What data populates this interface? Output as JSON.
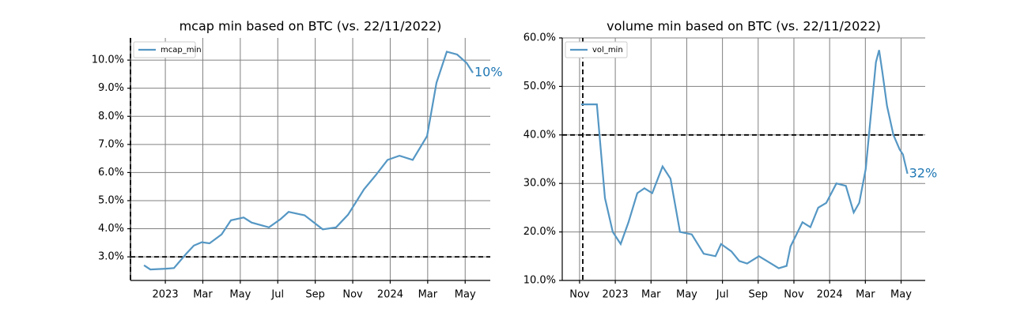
{
  "chart_data": [
    {
      "type": "line",
      "title": "mcap min based on BTC (vs. 22/11/2022)",
      "x": [
        0.86,
        1.2,
        2.04,
        2.46,
        3.1,
        3.52,
        3.94,
        4.36,
        5.0,
        5.5,
        6.18,
        6.6,
        7.53,
        8.16,
        8.58,
        9.43,
        10.4,
        11.11,
        11.75,
        12.6,
        13.22,
        13.86,
        14.49,
        15.2,
        15.97,
        16.47,
        17.02,
        17.57,
        18.08,
        18.41
      ],
      "series": [
        {
          "name": "mcap_min",
          "color": "#5597c4",
          "values": [
            2.7,
            2.55,
            2.58,
            2.6,
            3.1,
            3.4,
            3.52,
            3.48,
            3.8,
            4.3,
            4.4,
            4.22,
            4.05,
            4.35,
            4.6,
            4.48,
            3.98,
            4.05,
            4.5,
            5.4,
            5.9,
            6.45,
            6.6,
            6.45,
            7.3,
            9.2,
            10.3,
            10.2,
            9.9,
            9.55
          ]
        }
      ],
      "xlim": [
        0.14,
        19.34
      ],
      "xticks": [
        {
          "value": 2,
          "label": "2023"
        },
        {
          "value": 4,
          "label": "Mar"
        },
        {
          "value": 6,
          "label": "May"
        },
        {
          "value": 8,
          "label": "Jul"
        },
        {
          "value": 10,
          "label": "Sep"
        },
        {
          "value": 12,
          "label": "Nov"
        },
        {
          "value": 14,
          "label": "2024"
        },
        {
          "value": 16,
          "label": "Mar"
        },
        {
          "value": 18,
          "label": "May"
        }
      ],
      "ylim": [
        2.16,
        10.79
      ],
      "yticks": [
        {
          "value": 3,
          "label": "3.0%"
        },
        {
          "value": 4,
          "label": "4.0%"
        },
        {
          "value": 5,
          "label": "5.0%"
        },
        {
          "value": 6,
          "label": "6.0%"
        },
        {
          "value": 7,
          "label": "7.0%"
        },
        {
          "value": 8,
          "label": "8.0%"
        },
        {
          "value": 9,
          "label": "9.0%"
        },
        {
          "value": 10,
          "label": "10.0%"
        }
      ],
      "hline": 3,
      "vline": 0.14,
      "grid": true,
      "legend": "upper left",
      "annotation": "10%",
      "annotation_color": "#1f77b4"
    },
    {
      "type": "line",
      "title": "volume min based on BTC (vs. 22/11/2022)",
      "x": [
        0.09,
        0.97,
        1.42,
        1.86,
        2.3,
        2.74,
        3.23,
        3.63,
        4.07,
        4.65,
        5.09,
        5.62,
        6.28,
        6.95,
        7.61,
        7.92,
        8.5,
        8.94,
        9.38,
        10.04,
        10.49,
        11.15,
        11.59,
        11.81,
        12.48,
        12.92,
        13.36,
        13.81,
        14.38,
        14.91,
        15.35,
        15.66,
        16.02,
        16.33,
        16.59,
        16.77,
        16.95,
        17.21,
        17.57,
        17.92,
        18.1,
        18.36
      ],
      "series": [
        {
          "name": "vol_min",
          "color": "#5597c4",
          "values": [
            46.3,
            46.3,
            27,
            20,
            17.5,
            22,
            28,
            29,
            28,
            33.5,
            31,
            20,
            19.5,
            15.5,
            15,
            17.5,
            16,
            14,
            13.5,
            15,
            14,
            12.5,
            13,
            17,
            22,
            21,
            25,
            26,
            30,
            29.5,
            24,
            26,
            33,
            45,
            55,
            57.5,
            53,
            46,
            40,
            37,
            36,
            32
          ]
        }
      ],
      "xlim": [
        -0.97,
        19.35
      ],
      "xticks": [
        {
          "value": 0,
          "label": "Nov"
        },
        {
          "value": 2,
          "label": "2023"
        },
        {
          "value": 4,
          "label": "Mar"
        },
        {
          "value": 6,
          "label": "May"
        },
        {
          "value": 8,
          "label": "Jul"
        },
        {
          "value": 10,
          "label": "Sep"
        },
        {
          "value": 12,
          "label": "Nov"
        },
        {
          "value": 14,
          "label": "2024"
        },
        {
          "value": 16,
          "label": "Mar"
        },
        {
          "value": 18,
          "label": "May"
        }
      ],
      "ylim": [
        10,
        60
      ],
      "yticks": [
        {
          "value": 10,
          "label": "10.0%"
        },
        {
          "value": 20,
          "label": "20.0%"
        },
        {
          "value": 30,
          "label": "30.0%"
        },
        {
          "value": 40,
          "label": "40.0%"
        },
        {
          "value": 50,
          "label": "50.0%"
        },
        {
          "value": 60,
          "label": "60.0%"
        }
      ],
      "hline": 40,
      "vline": 0.18,
      "grid": true,
      "legend": "upper left",
      "annotation": "32%",
      "annotation_color": "#1f77b4"
    }
  ]
}
